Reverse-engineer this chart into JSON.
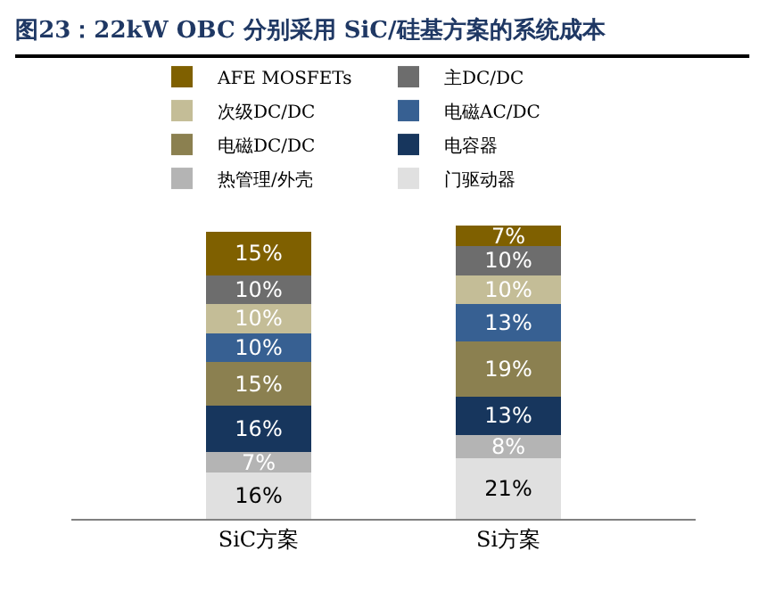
{
  "chart_data": {
    "type": "bar",
    "stacked": true,
    "title": "图23：22kW OBC 分别采用 SiC/硅基方案的系统成本",
    "categories": [
      "SiC方案",
      "Si方案"
    ],
    "series": [
      {
        "name": "门驱动器",
        "color": "#e0e0e0",
        "values": [
          16,
          21
        ],
        "value_labels": [
          "16%",
          "21%"
        ]
      },
      {
        "name": "热管理/外壳",
        "color": "#b4b4b4",
        "values": [
          7,
          8
        ],
        "value_labels": [
          "7%",
          "8%"
        ]
      },
      {
        "name": "电容器",
        "color": "#17365d",
        "values": [
          16,
          13
        ],
        "value_labels": [
          "16%",
          "13%"
        ]
      },
      {
        "name": "电磁DC/DC",
        "color": "#8b8050",
        "values": [
          15,
          19
        ],
        "value_labels": [
          "15%",
          "19%"
        ]
      },
      {
        "name": "电磁AC/DC",
        "color": "#376092",
        "values": [
          10,
          13
        ],
        "value_labels": [
          "10%",
          "13%"
        ]
      },
      {
        "name": "次级DC/DC",
        "color": "#c4bd97",
        "values": [
          10,
          10
        ],
        "value_labels": [
          "10%",
          "10%"
        ]
      },
      {
        "name": "主DC/DC",
        "color": "#6d6d6d",
        "values": [
          10,
          10
        ],
        "value_labels": [
          "10%",
          "10%"
        ]
      },
      {
        "name": "AFE MOSFETs",
        "color": "#7f6000",
        "values": [
          15,
          7
        ],
        "value_labels": [
          "15%",
          "7%"
        ]
      }
    ],
    "legend": "top"
  }
}
